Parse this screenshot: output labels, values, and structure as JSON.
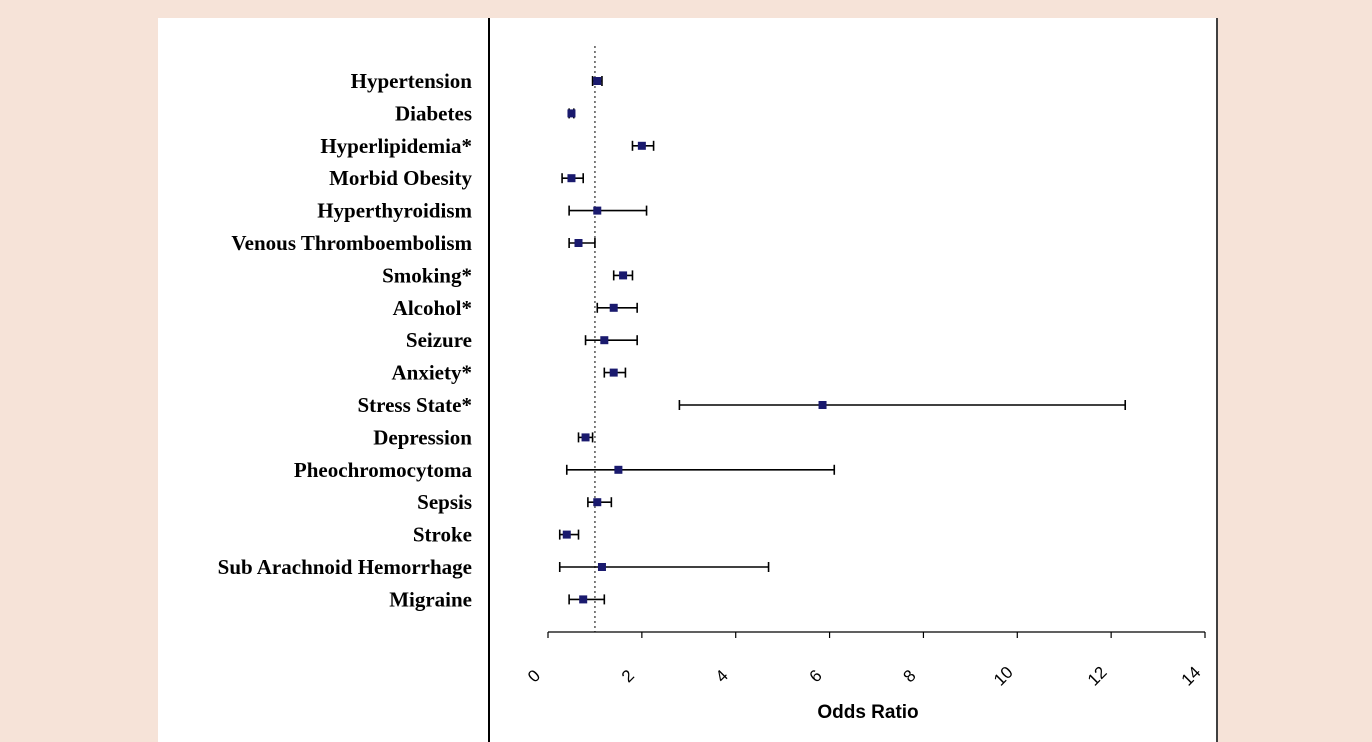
{
  "chart_data": {
    "type": "forest",
    "xlabel": "Odds Ratio",
    "xlim": [
      0,
      14
    ],
    "xticks": [
      0,
      2,
      4,
      6,
      8,
      10,
      12,
      14
    ],
    "reference_line": 1,
    "marker_color": "#1a1a6e",
    "rows": [
      {
        "label": "Hypertension",
        "estimate": 1.05,
        "lower": 0.95,
        "upper": 1.15
      },
      {
        "label": "Diabetes",
        "estimate": 0.5,
        "lower": 0.45,
        "upper": 0.55
      },
      {
        "label": "Hyperlipidemia*",
        "estimate": 2.0,
        "lower": 1.8,
        "upper": 2.25
      },
      {
        "label": "Morbid Obesity",
        "estimate": 0.5,
        "lower": 0.3,
        "upper": 0.75
      },
      {
        "label": "Hyperthyroidism",
        "estimate": 1.05,
        "lower": 0.45,
        "upper": 2.1
      },
      {
        "label": "Venous Thromboembolism",
        "estimate": 0.65,
        "lower": 0.45,
        "upper": 1.0
      },
      {
        "label": "Smoking*",
        "estimate": 1.6,
        "lower": 1.4,
        "upper": 1.8
      },
      {
        "label": "Alcohol*",
        "estimate": 1.4,
        "lower": 1.05,
        "upper": 1.9
      },
      {
        "label": "Seizure",
        "estimate": 1.2,
        "lower": 0.8,
        "upper": 1.9
      },
      {
        "label": "Anxiety*",
        "estimate": 1.4,
        "lower": 1.2,
        "upper": 1.65
      },
      {
        "label": "Stress State*",
        "estimate": 5.85,
        "lower": 2.8,
        "upper": 12.3
      },
      {
        "label": "Depression",
        "estimate": 0.8,
        "lower": 0.65,
        "upper": 0.95
      },
      {
        "label": "Pheochromocytoma",
        "estimate": 1.5,
        "lower": 0.4,
        "upper": 6.1
      },
      {
        "label": "Sepsis",
        "estimate": 1.05,
        "lower": 0.85,
        "upper": 1.35
      },
      {
        "label": "Stroke",
        "estimate": 0.4,
        "lower": 0.25,
        "upper": 0.65
      },
      {
        "label": "Sub Arachnoid Hemorrhage",
        "estimate": 1.15,
        "lower": 0.25,
        "upper": 4.7
      },
      {
        "label": "Migraine",
        "estimate": 0.75,
        "lower": 0.45,
        "upper": 1.2
      }
    ]
  }
}
